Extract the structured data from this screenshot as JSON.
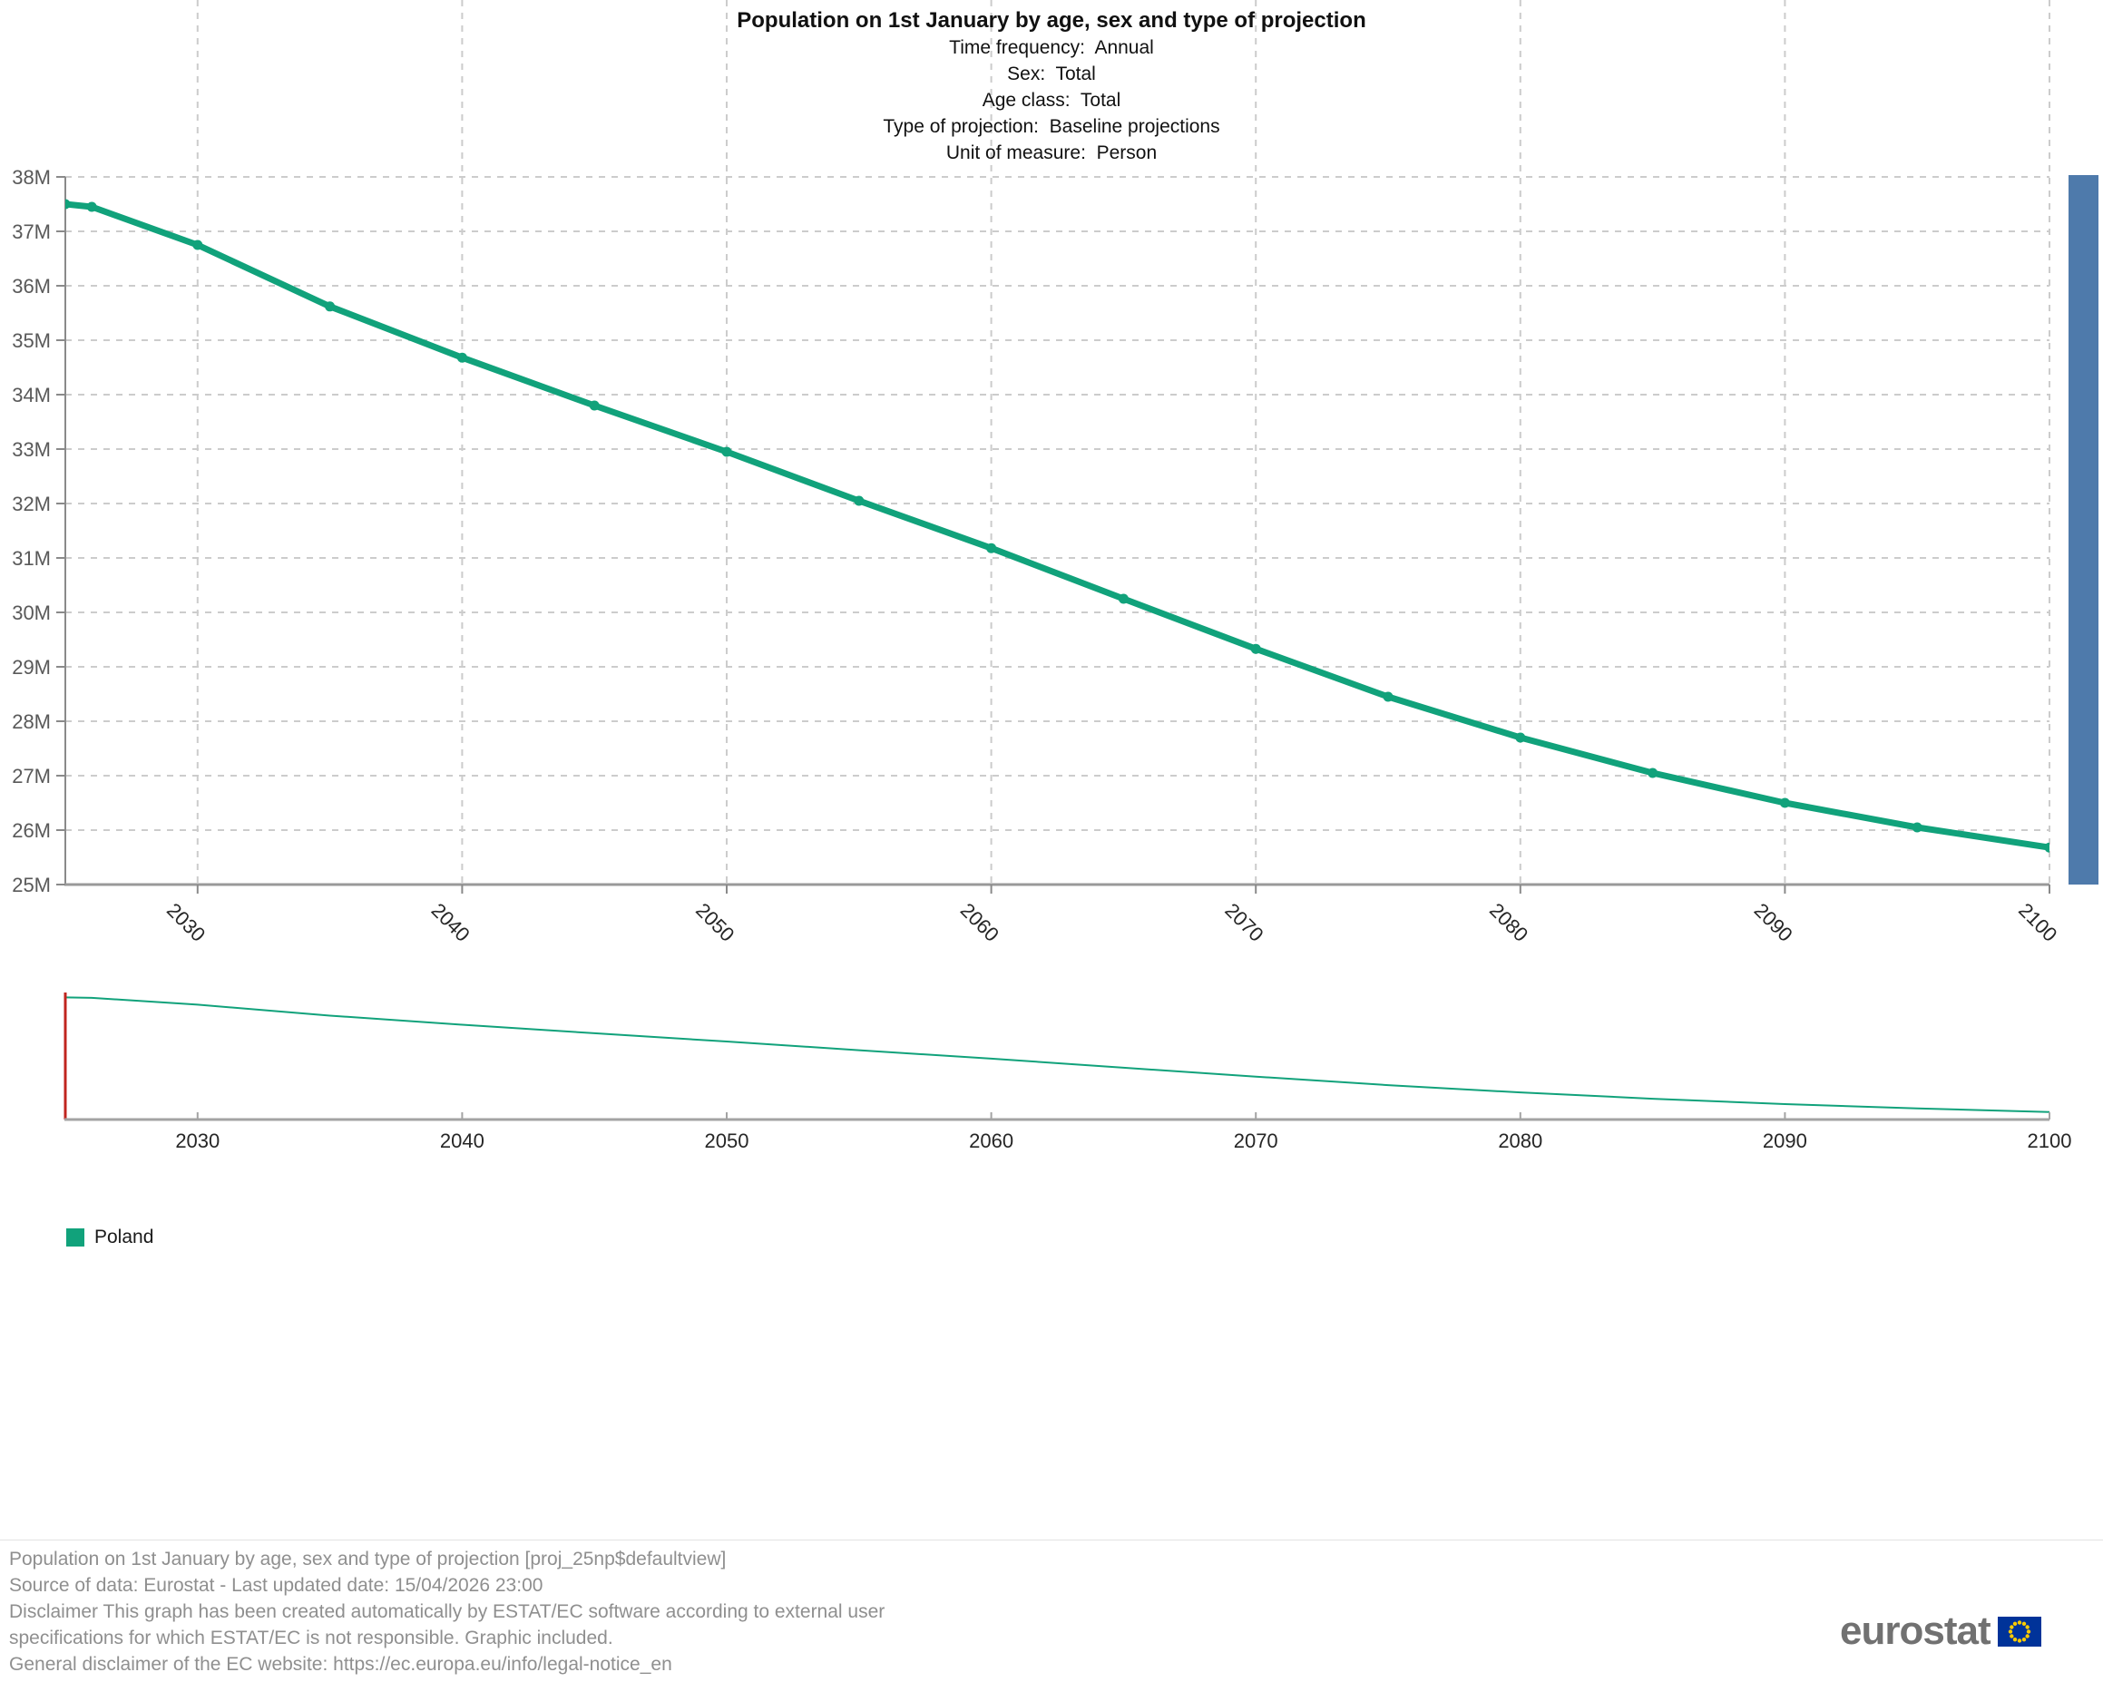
{
  "header": {
    "title": "Population on 1st January by age, sex and type of projection",
    "subtitles": [
      "Time frequency:  Annual",
      "Sex:  Total",
      "Age class:  Total",
      "Type of projection:  Baseline projections",
      "Unit of measure:  Person"
    ]
  },
  "chart_data": {
    "type": "line",
    "title": "Population on 1st January by age, sex and type of projection",
    "unit": "Person (millions)",
    "xlim": [
      2025,
      2100
    ],
    "ylim": [
      25,
      38
    ],
    "grid": true,
    "legend_position": "bottom-left",
    "x_tick_labels": [
      "2030",
      "2040",
      "2050",
      "2060",
      "2070",
      "2080",
      "2090",
      "2100"
    ],
    "y_tick_labels": [
      "25M",
      "26M",
      "27M",
      "28M",
      "29M",
      "30M",
      "31M",
      "32M",
      "33M",
      "34M",
      "35M",
      "36M",
      "37M",
      "38M"
    ],
    "series": [
      {
        "name": "Poland",
        "color": "#11a27b",
        "points": [
          [
            2025,
            37.5
          ],
          [
            2026,
            37.45
          ],
          [
            2030,
            36.75
          ],
          [
            2035,
            35.62
          ],
          [
            2040,
            34.68
          ],
          [
            2045,
            33.8
          ],
          [
            2050,
            32.95
          ],
          [
            2055,
            32.05
          ],
          [
            2060,
            31.18
          ],
          [
            2065,
            30.25
          ],
          [
            2070,
            29.33
          ],
          [
            2075,
            28.45
          ],
          [
            2080,
            27.7
          ],
          [
            2085,
            27.05
          ],
          [
            2090,
            26.5
          ],
          [
            2095,
            26.05
          ],
          [
            2100,
            25.68
          ]
        ]
      }
    ],
    "navigator": {
      "x_tick_labels": [
        "2030",
        "2040",
        "2050",
        "2060",
        "2070",
        "2080",
        "2090",
        "2100"
      ],
      "selection_start_year": 2025
    }
  },
  "colors": {
    "series_green": "#11a27b",
    "scrollbar_blue": "#4e7aab",
    "navigator_marker_red": "#c0251f",
    "grid": "#cccccc",
    "y_axis": "#8a8a8a",
    "x_axis": "#999999",
    "y_tick_label": "#595959",
    "x_tick_label": "#262626",
    "eu_flag_blue": "#003399",
    "eu_flag_star": "#ffcc00"
  },
  "legend": {
    "label": "Poland"
  },
  "footer": {
    "lines": [
      "Population on 1st January by age, sex and type of projection [proj_25np$defaultview]",
      "Source of data: Eurostat - Last updated date: 15/04/2026 23:00",
      "Disclaimer This graph has been created automatically by ESTAT/EC software according to external user",
      "specifications for which ESTAT/EC is not responsible. Graphic included.",
      "General disclaimer of the EC website: https://ec.europa.eu/info/legal-notice_en"
    ]
  },
  "logo": {
    "text": "eurostat"
  }
}
